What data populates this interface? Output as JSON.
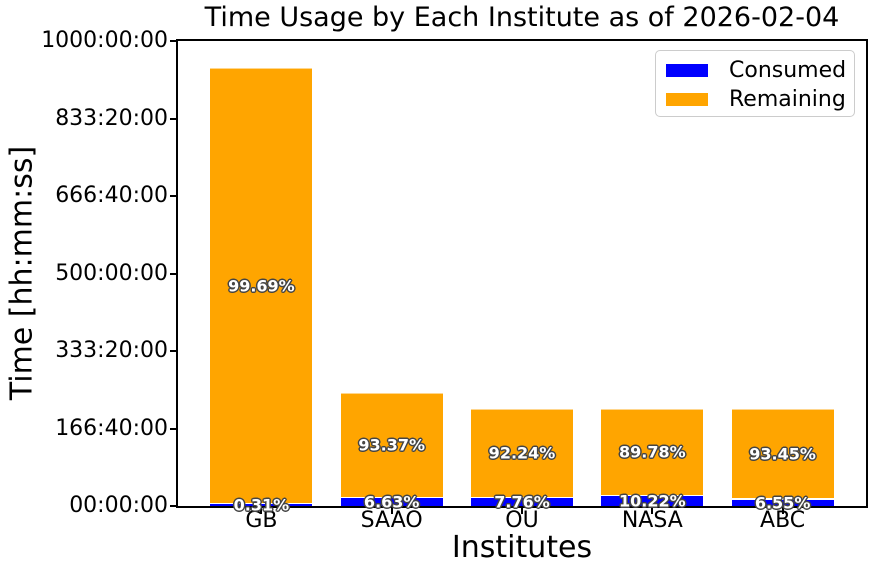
{
  "chart_data": {
    "type": "bar",
    "stacked": true,
    "title": "Time Usage by Each Institute as of 2026-02-04",
    "xlabel": "Institutes",
    "ylabel": "Time [hh:mm:ss]",
    "categories": [
      "GB",
      "SAAO",
      "OU",
      "NASA",
      "ABC"
    ],
    "totals_hours_estimated": [
      941,
      244,
      208,
      208,
      208
    ],
    "series": [
      {
        "name": "Consumed",
        "color": "#0000ff",
        "pct": [
          0.31,
          6.63,
          7.76,
          10.22,
          6.55
        ],
        "labels": [
          "0.31%",
          "6.63%",
          "7.76%",
          "10.22%",
          "6.55%"
        ],
        "hours_estimated": [
          2.9,
          16.2,
          16.1,
          21.3,
          13.6
        ]
      },
      {
        "name": "Remaining",
        "color": "#ffa500",
        "pct": [
          99.69,
          93.37,
          92.24,
          89.78,
          93.45
        ],
        "labels": [
          "99.69%",
          "93.37%",
          "92.24%",
          "89.78%",
          "93.45%"
        ],
        "hours_estimated": [
          938.1,
          227.8,
          191.9,
          186.7,
          194.4
        ]
      }
    ],
    "ylim": [
      0,
      1000
    ],
    "yticks": {
      "values": [
        1000,
        833.3333,
        666.6667,
        500,
        333.3333,
        166.6667,
        0
      ],
      "labels": [
        "1000:00:00",
        "833:20:00",
        "666:40:00",
        "500:00:00",
        "333:20:00",
        "166:40:00",
        "00:00:00"
      ]
    },
    "legend": {
      "position": "upper right",
      "entries": [
        "Consumed",
        "Remaining"
      ]
    },
    "grid": false,
    "colors": {
      "consumed": "#0000ff",
      "remaining": "#ffa500",
      "spine": "#000000",
      "legend_edge": "#cccccc",
      "pct_text": "#ffffff",
      "pct_outline": "#444444"
    }
  }
}
